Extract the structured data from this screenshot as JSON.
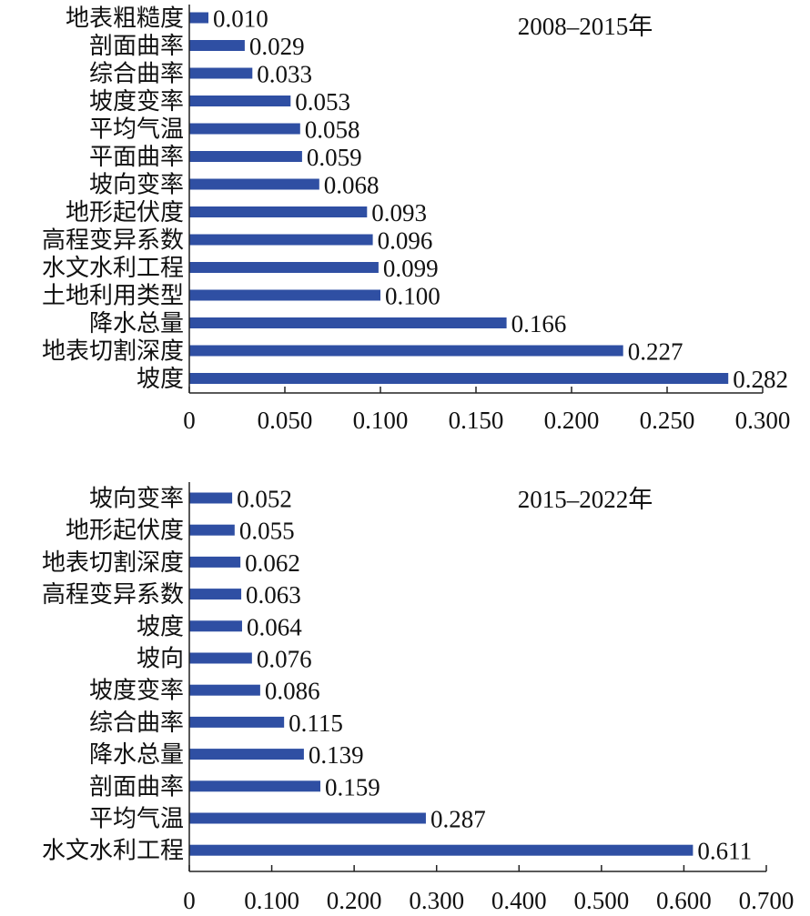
{
  "chart_data": [
    {
      "type": "bar",
      "orientation": "horizontal",
      "title": "2008–2015年",
      "categories": [
        "地表粗糙度",
        "剖面曲率",
        "综合曲率",
        "坡度变率",
        "平均气温",
        "平面曲率",
        "坡向变率",
        "地形起伏度",
        "高程变异系数",
        "水文水利工程",
        "土地利用类型",
        "降水总量",
        "地表切割深度",
        "坡度"
      ],
      "values": [
        0.01,
        0.029,
        0.033,
        0.053,
        0.058,
        0.059,
        0.068,
        0.093,
        0.096,
        0.099,
        0.1,
        0.166,
        0.227,
        0.282
      ],
      "value_labels": [
        "0.010",
        "0.029",
        "0.033",
        "0.053",
        "0.058",
        "0.059",
        "0.068",
        "0.093",
        "0.096",
        "0.099",
        "0.100",
        "0.166",
        "0.227",
        "0.282"
      ],
      "xlim": [
        0,
        0.3
      ],
      "ticks": [
        0,
        0.05,
        0.1,
        0.15,
        0.2,
        0.25,
        0.3
      ],
      "tick_labels": [
        "0",
        "0.050",
        "0.100",
        "0.150",
        "0.200",
        "0.250",
        "0.300"
      ],
      "bar_color": "#2f4fa3",
      "grid": false
    },
    {
      "type": "bar",
      "orientation": "horizontal",
      "title": "2015–2022年",
      "categories": [
        "坡向变率",
        "地形起伏度",
        "地表切割深度",
        "高程变异系数",
        "坡度",
        "坡向",
        "坡度变率",
        "综合曲率",
        "降水总量",
        "剖面曲率",
        "平均气温",
        "水文水利工程"
      ],
      "values": [
        0.052,
        0.055,
        0.062,
        0.063,
        0.064,
        0.076,
        0.086,
        0.115,
        0.139,
        0.159,
        0.287,
        0.611
      ],
      "value_labels": [
        "0.052",
        "0.055",
        "0.062",
        "0.063",
        "0.064",
        "0.076",
        "0.086",
        "0.115",
        "0.139",
        "0.159",
        "0.287",
        "0.611"
      ],
      "xlim": [
        0,
        0.7
      ],
      "ticks": [
        0,
        0.1,
        0.2,
        0.3,
        0.4,
        0.5,
        0.6,
        0.7
      ],
      "tick_labels": [
        "0",
        "0.100",
        "0.200",
        "0.300",
        "0.400",
        "0.500",
        "0.600",
        "0.700"
      ],
      "bar_color": "#2f4fa3",
      "grid": false
    }
  ]
}
